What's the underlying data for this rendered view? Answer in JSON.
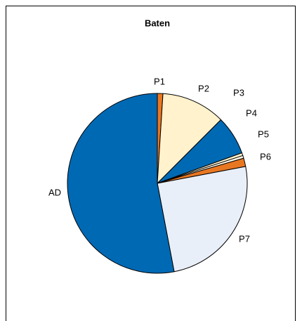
{
  "chart_data": {
    "type": "pie",
    "title": "Baten",
    "categories": [
      "P1",
      "P2",
      "P3",
      "P4",
      "P5",
      "P6",
      "P7",
      "AD"
    ],
    "values": [
      1,
      11.5,
      7,
      0.5,
      0.5,
      1.5,
      25,
      53
    ],
    "colors": [
      "#e87722",
      "#fff2cc",
      "#0069b4",
      "#fff2cc",
      "#fff8e8",
      "#e87722",
      "#e9eff8",
      "#0069b4"
    ]
  }
}
